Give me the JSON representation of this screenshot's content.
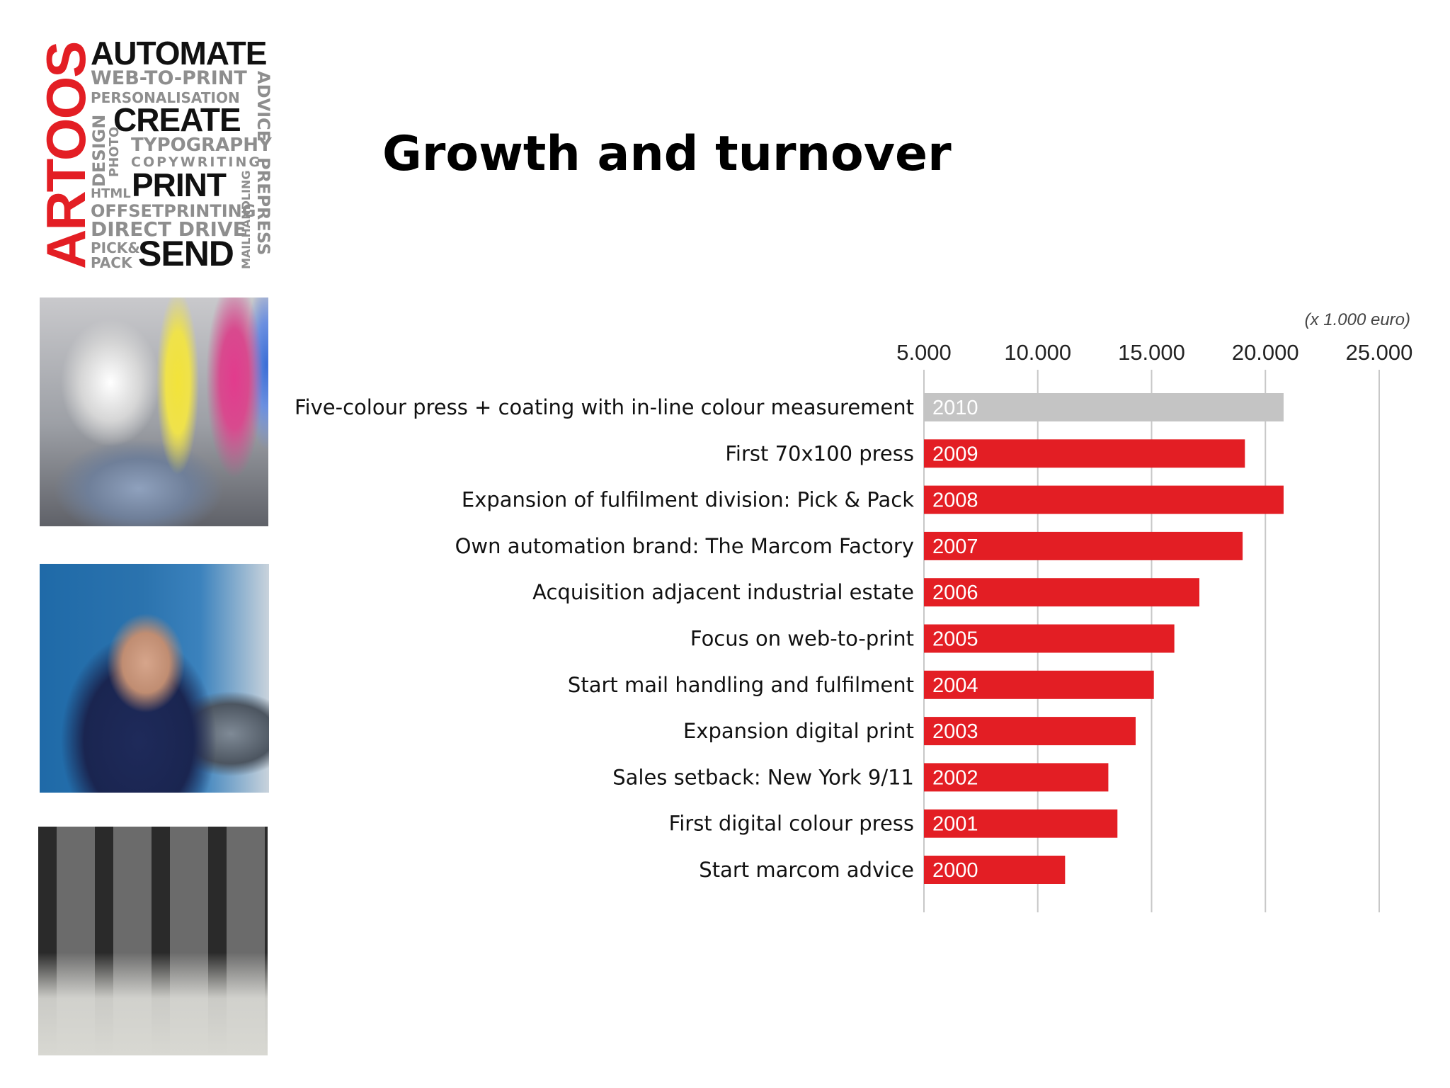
{
  "logo": {
    "brand": "ARTOOS",
    "words": {
      "automate": "AUTOMATE",
      "web_to_print": "WEB-TO-PRINT",
      "personalisation": "PERSONALISATION",
      "advice": "ADVICE",
      "design": "DESIGN",
      "photo": "PHOTO",
      "create": "CREATE",
      "typography": "TYPOGRAPHY",
      "copywriting": "COPYWRITING",
      "html": "HTML",
      "print": "PRINT",
      "mailhandling": "MAILHANDLING",
      "prepress": "PREPRESS",
      "offsetprinting": "OFFSETPRINTING",
      "direct_drive": "DIRECT DRIVE",
      "pick": "PICK&",
      "pack": "PACK",
      "send": "SEND"
    }
  },
  "slide": {
    "title": "Growth and turnover"
  },
  "chart_data": {
    "type": "bar",
    "orientation": "horizontal",
    "unit_note": "(x 1.000 euro)",
    "xlim": [
      5000,
      25000
    ],
    "xticks": [
      5000,
      10000,
      15000,
      20000,
      25000
    ],
    "xtick_labels": [
      "5.000",
      "10.000",
      "15.000",
      "20.000",
      "25.000"
    ],
    "grid": true,
    "categories": [
      "Five-colour press + coating with in-line colour measurement",
      "First 70x100 press",
      "Expansion of fulfilment division: Pick & Pack",
      "Own automation brand: The Marcom Factory",
      "Acquisition adjacent industrial estate",
      "Focus on web-to-print",
      "Start mail handling and fulfilment",
      "Expansion digital print",
      "Sales setback: New York 9/11",
      "First digital colour press",
      "Start marcom advice"
    ],
    "years": [
      "2010",
      "2009",
      "2008",
      "2007",
      "2006",
      "2005",
      "2004",
      "2003",
      "2002",
      "2001",
      "2000"
    ],
    "values": [
      20800,
      19100,
      20800,
      19000,
      17100,
      16000,
      15100,
      14300,
      13100,
      13500,
      11200
    ],
    "colors": [
      "#c4c4c4",
      "#e31e24",
      "#e31e24",
      "#e31e24",
      "#e31e24",
      "#e31e24",
      "#e31e24",
      "#e31e24",
      "#e31e24",
      "#e31e24",
      "#e31e24"
    ]
  }
}
